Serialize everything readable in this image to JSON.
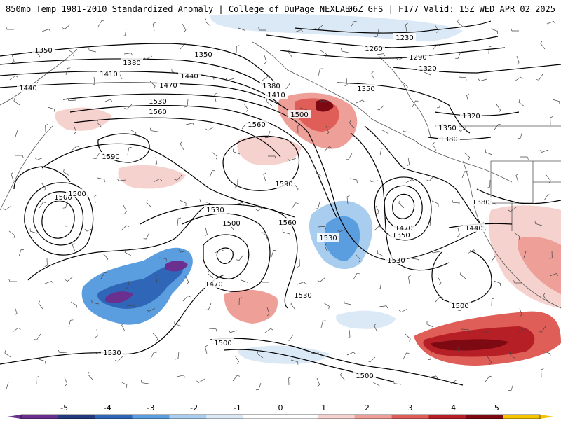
{
  "header": {
    "left": "850mb Temp 1981-2010 Standardized Anomaly | College of DuPage NEXLAB",
    "right": "06Z GFS | F177 Valid: 15Z WED APR 02 2025"
  },
  "colorbar": {
    "ticks": [
      {
        "label": "-5",
        "value": -5
      },
      {
        "label": "-4",
        "value": -4
      },
      {
        "label": "-3",
        "value": -3
      },
      {
        "label": "-2",
        "value": -2
      },
      {
        "label": "-1",
        "value": -1
      },
      {
        "label": "0",
        "value": 0
      },
      {
        "label": "1",
        "value": 1
      },
      {
        "label": "2",
        "value": 2
      },
      {
        "label": "3",
        "value": 3
      },
      {
        "label": "4",
        "value": 4
      },
      {
        "label": "5",
        "value": 5
      }
    ],
    "range": [
      -6,
      6
    ],
    "colors": [
      "#6a2f8f",
      "#233a7e",
      "#2f66b8",
      "#5b9ee0",
      "#a9cdef",
      "#dbe9f7",
      "#ffffff",
      "#ffffff",
      "#f6d2cf",
      "#ee9f98",
      "#df5e58",
      "#b51f25",
      "#7d0a12",
      "#f5c400"
    ]
  },
  "contour_labels": [
    {
      "text": "1350"
    },
    {
      "text": "1380"
    },
    {
      "text": "1410"
    },
    {
      "text": "1440"
    },
    {
      "text": "1350"
    },
    {
      "text": "1440"
    },
    {
      "text": "1470"
    },
    {
      "text": "1530"
    },
    {
      "text": "1560"
    },
    {
      "text": "1590"
    },
    {
      "text": "1380"
    },
    {
      "text": "1410"
    },
    {
      "text": "1500"
    },
    {
      "text": "1560"
    },
    {
      "text": "1230"
    },
    {
      "text": "1260"
    },
    {
      "text": "1290"
    },
    {
      "text": "1320"
    },
    {
      "text": "1350"
    },
    {
      "text": "1320"
    },
    {
      "text": "1350"
    },
    {
      "text": "1380"
    },
    {
      "text": "1530"
    },
    {
      "text": "1500"
    },
    {
      "text": "1530"
    },
    {
      "text": "1500"
    },
    {
      "text": "1470"
    },
    {
      "text": "1590"
    },
    {
      "text": "1560"
    },
    {
      "text": "1530"
    },
    {
      "text": "1530"
    },
    {
      "text": "1470"
    },
    {
      "text": "1350"
    },
    {
      "text": "1380"
    },
    {
      "text": "1440"
    },
    {
      "text": "1500"
    },
    {
      "text": "1530"
    },
    {
      "text": "1500"
    },
    {
      "text": "1500"
    },
    {
      "text": "1500"
    }
  ],
  "anomaly_regions": [
    {
      "id": "cold-nw-pacific",
      "value": -4.6
    },
    {
      "id": "cold-central-pacific",
      "value": -3.1
    },
    {
      "id": "cold-north-edge",
      "value": -1.5
    },
    {
      "id": "cold-south",
      "value": -1.2
    },
    {
      "id": "warm-gulf-of-alaska",
      "value": 4.5
    },
    {
      "id": "warm-mexico",
      "value": 4.8
    },
    {
      "id": "warm-southwest-us",
      "value": 2.2
    },
    {
      "id": "warm-central-pacific",
      "value": 1.6
    }
  ]
}
